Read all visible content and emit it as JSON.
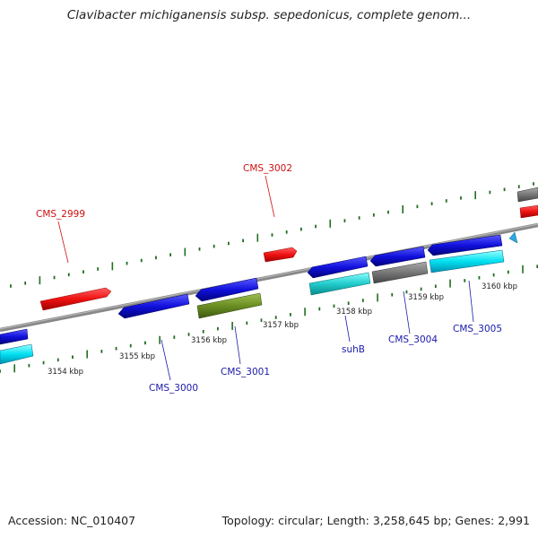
{
  "title": "Clavibacter michiganensis subsp. sepedonicus, complete genom...",
  "footer": {
    "accession": "Accession: NC_010407",
    "stats": "Topology: circular; Length: 3,258,645 bp; Genes: 2,991"
  },
  "colors": {
    "red": "#ee1111",
    "blue": "#1111dd",
    "cyan": "#22cccc",
    "grey": "#777777",
    "olive": "#6b8e23",
    "tick_green": "#1f6e1f",
    "forward_label": "#cc1111",
    "reverse_label": "#1a1aaa"
  },
  "scale_labels": [
    "3154 kbp",
    "3155 kbp",
    "3156 kbp",
    "3157 kbp",
    "3158 kbp",
    "3159 kbp",
    "3160 kbp"
  ],
  "gene_labels": {
    "forward": [
      "CMS_2999",
      "CMS_3002"
    ],
    "reverse": [
      "CMS_3000",
      "CMS_3001",
      "suhB",
      "CMS_3004",
      "CMS_3005"
    ]
  }
}
